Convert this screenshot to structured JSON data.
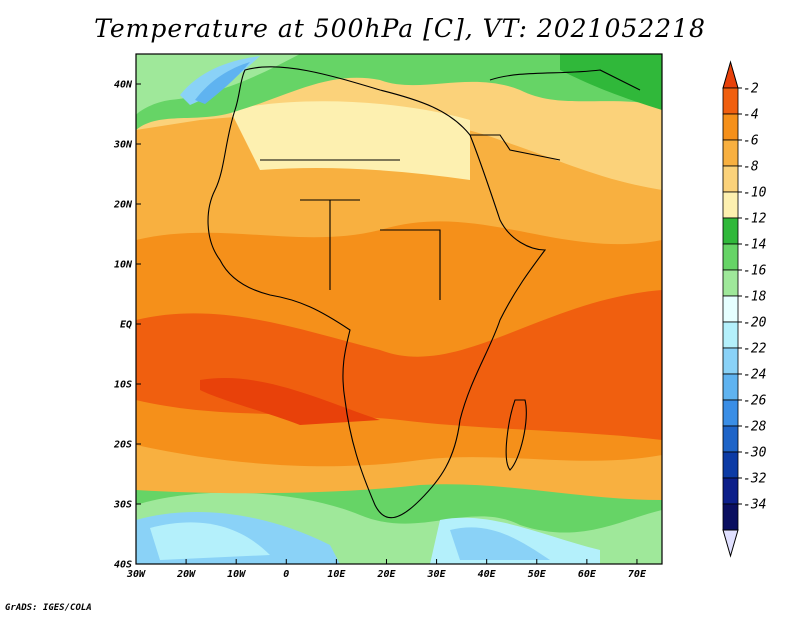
{
  "title": "Temperature at 500hPa [C], VT: 2021052218",
  "credit": "GrADS: IGES/COLA",
  "map": {
    "lon_range": [
      -30,
      75
    ],
    "lat_range": [
      -40,
      45
    ],
    "lon_ticks": [
      {
        "value": -30,
        "label": "30W"
      },
      {
        "value": -20,
        "label": "20W"
      },
      {
        "value": -10,
        "label": "10W"
      },
      {
        "value": 0,
        "label": "0"
      },
      {
        "value": 10,
        "label": "10E"
      },
      {
        "value": 20,
        "label": "20E"
      },
      {
        "value": 30,
        "label": "30E"
      },
      {
        "value": 40,
        "label": "40E"
      },
      {
        "value": 50,
        "label": "50E"
      },
      {
        "value": 60,
        "label": "60E"
      },
      {
        "value": 70,
        "label": "70E"
      }
    ],
    "lat_ticks": [
      {
        "value": 40,
        "label": "40N"
      },
      {
        "value": 30,
        "label": "30N"
      },
      {
        "value": 20,
        "label": "20N"
      },
      {
        "value": 10,
        "label": "10N"
      },
      {
        "value": 0,
        "label": "EQ"
      },
      {
        "value": -10,
        "label": "10S"
      },
      {
        "value": -20,
        "label": "20S"
      },
      {
        "value": -30,
        "label": "30S"
      },
      {
        "value": -40,
        "label": "40S"
      }
    ]
  },
  "colorbar": {
    "labels": [
      "-2",
      "-4",
      "-6",
      "-8",
      "-10",
      "-12",
      "-14",
      "-16",
      "-18",
      "-20",
      "-22",
      "-24",
      "-26",
      "-28",
      "-30",
      "-32",
      "-34"
    ],
    "colors": [
      "#e8410a",
      "#f05f0f",
      "#f5901a",
      "#f8b040",
      "#fbd27a",
      "#fdf0b0",
      "#30b83a",
      "#66d466",
      "#9fe89a",
      "#e6ffff",
      "#b4f0fb",
      "#8ad2f7",
      "#5fb3f0",
      "#3a8ee6",
      "#1e64c8",
      "#0c3ba5",
      "#0c1f8a",
      "#0a0f60",
      "#e0e0ff"
    ]
  }
}
